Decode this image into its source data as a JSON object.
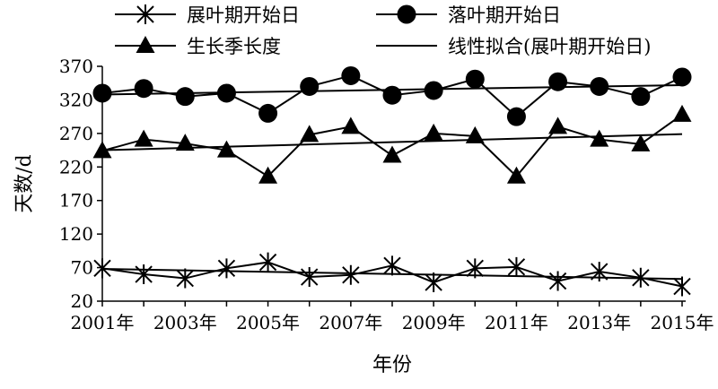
{
  "chart_data": {
    "type": "line",
    "title": "",
    "xlabel": "年份",
    "ylabel": "天数/d",
    "ylim": [
      20,
      370
    ],
    "yticks": [
      20,
      70,
      120,
      170,
      220,
      270,
      320,
      370
    ],
    "ytick_labels": [
      "20",
      "70",
      "120",
      "170",
      "220",
      "270",
      "320",
      "370"
    ],
    "x": [
      2001,
      2002,
      2003,
      2004,
      2005,
      2006,
      2007,
      2008,
      2009,
      2010,
      2011,
      2012,
      2013,
      2014,
      2015
    ],
    "xtick_labels": [
      "2001年",
      "2003年",
      "2005年",
      "2007年",
      "2009年",
      "2011年",
      "2013年",
      "2015年"
    ],
    "grid": false,
    "legend_position": "top",
    "series": [
      {
        "name": "展叶期开始日",
        "marker": "asterisk",
        "values": [
          69,
          60,
          54,
          69,
          78,
          56,
          59,
          73,
          48,
          69,
          71,
          50,
          64,
          55,
          42
        ]
      },
      {
        "name": "落叶期开始日",
        "marker": "circle",
        "values": [
          330,
          337,
          325,
          330,
          300,
          340,
          356,
          327,
          334,
          351,
          295,
          347,
          340,
          325,
          354
        ]
      },
      {
        "name": "生长季长度",
        "marker": "triangle",
        "values": [
          244,
          261,
          255,
          245,
          206,
          268,
          280,
          237,
          270,
          266,
          206,
          280,
          261,
          254,
          298
        ]
      }
    ],
    "fits": [
      {
        "name": "线性拟合(展叶期开始日)",
        "from": [
          2001,
          68
        ],
        "to": [
          2015,
          53
        ]
      },
      {
        "from": [
          2001,
          328
        ],
        "to": [
          2015,
          342
        ]
      },
      {
        "from": [
          2001,
          245
        ],
        "to": [
          2015,
          269
        ]
      }
    ]
  }
}
